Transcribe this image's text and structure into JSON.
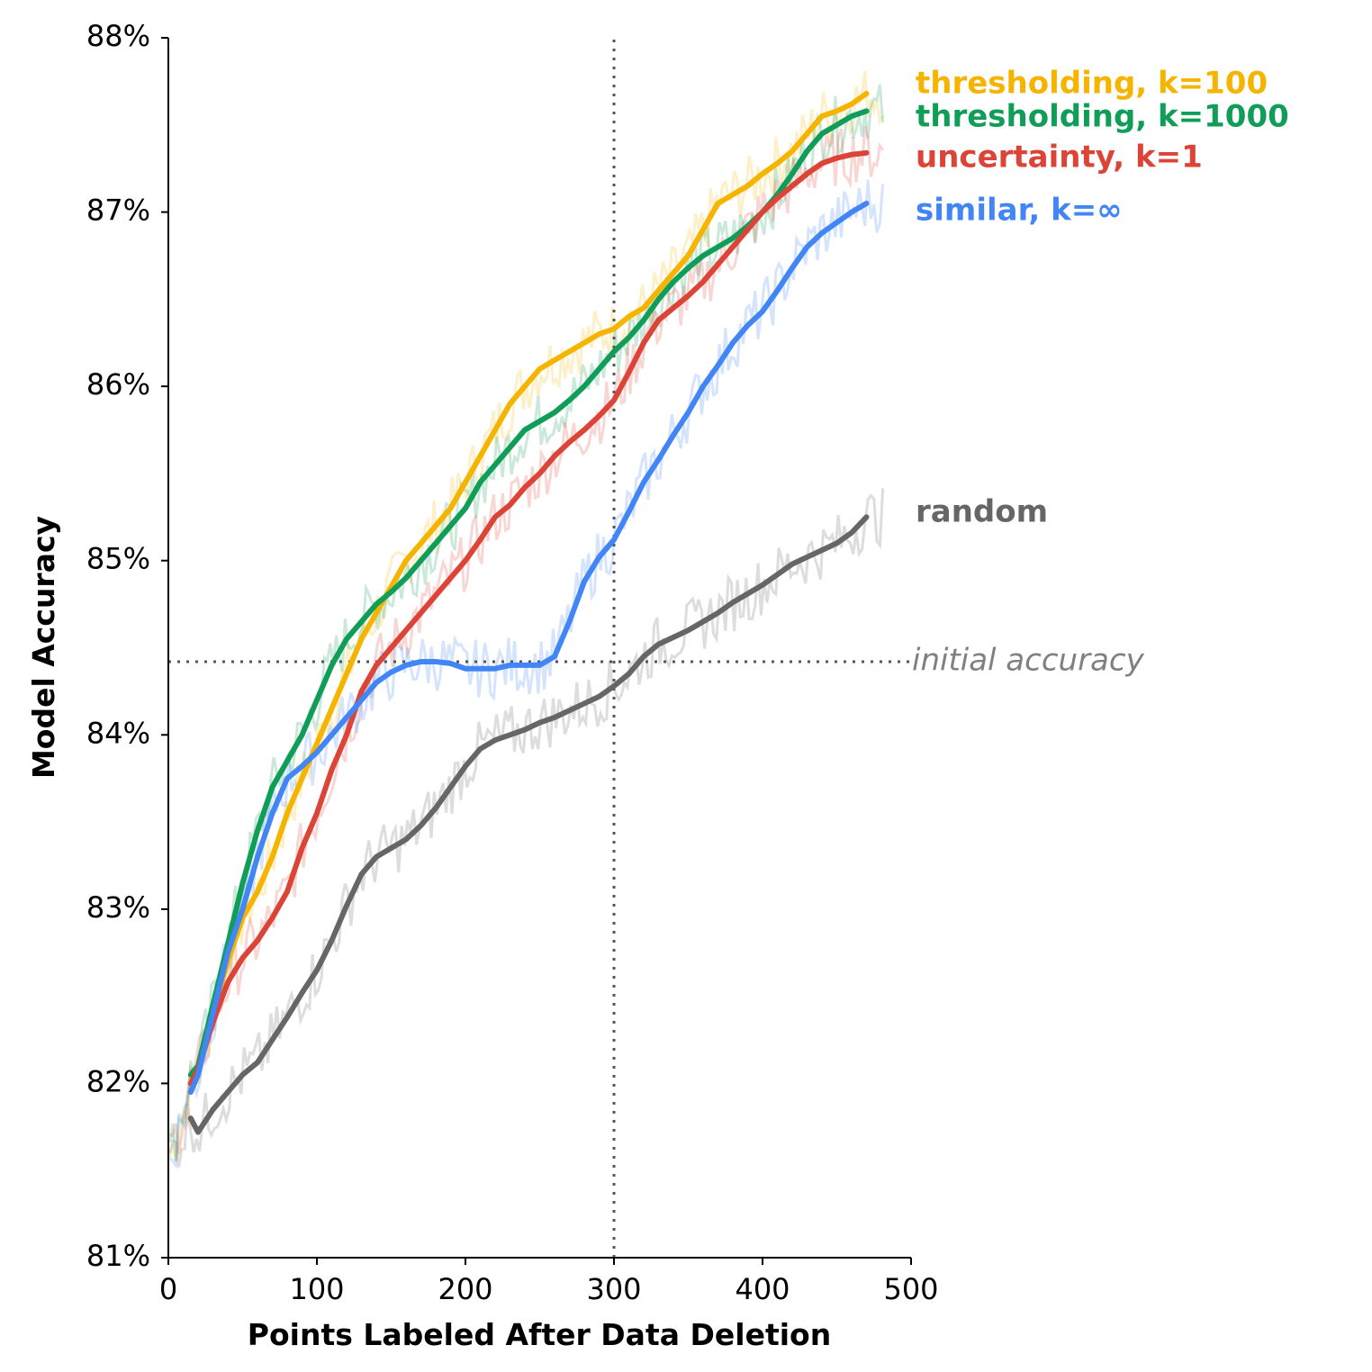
{
  "chart_data": {
    "type": "line",
    "title": "",
    "xlabel": "Points Labeled After Data Deletion",
    "ylabel": "Model Accuracy",
    "xlim": [
      0,
      500
    ],
    "ylim": [
      81,
      88
    ],
    "x_ticks": [
      0,
      100,
      200,
      300,
      400,
      500
    ],
    "y_ticks": [
      81,
      82,
      83,
      84,
      85,
      86,
      87,
      88
    ],
    "x_tick_labels": [
      "0",
      "100",
      "200",
      "300",
      "400",
      "500"
    ],
    "y_tick_labels": [
      "81%",
      "82%",
      "83%",
      "84%",
      "85%",
      "86%",
      "87%",
      "88%"
    ],
    "grid": false,
    "vertical_reference": {
      "x": 300,
      "style": "dotted"
    },
    "horizontal_reference": {
      "y": 84.42,
      "label": "initial accuracy",
      "style": "dotted"
    },
    "series": [
      {
        "name": "thresholding, k=100",
        "color": "#F4B400",
        "x": [
          15,
          20,
          30,
          40,
          50,
          60,
          70,
          80,
          90,
          100,
          110,
          120,
          130,
          140,
          150,
          160,
          170,
          180,
          190,
          200,
          210,
          220,
          230,
          240,
          250,
          260,
          270,
          280,
          290,
          300,
          310,
          320,
          330,
          340,
          350,
          360,
          370,
          380,
          390,
          400,
          410,
          420,
          430,
          440,
          450,
          460,
          470
        ],
        "y": [
          81.95,
          82.05,
          82.4,
          82.7,
          82.95,
          83.1,
          83.3,
          83.55,
          83.75,
          83.95,
          84.15,
          84.35,
          84.55,
          84.7,
          84.85,
          85.0,
          85.1,
          85.2,
          85.3,
          85.45,
          85.6,
          85.75,
          85.9,
          86.0,
          86.1,
          86.15,
          86.2,
          86.25,
          86.3,
          86.33,
          86.4,
          86.45,
          86.55,
          86.65,
          86.75,
          86.9,
          87.05,
          87.1,
          87.15,
          87.22,
          87.28,
          87.35,
          87.45,
          87.55,
          87.58,
          87.62,
          87.68
        ]
      },
      {
        "name": "thresholding, k=1000",
        "color": "#0F9D58",
        "x": [
          15,
          20,
          30,
          40,
          50,
          60,
          70,
          80,
          90,
          100,
          110,
          120,
          130,
          140,
          150,
          160,
          170,
          180,
          190,
          200,
          210,
          220,
          230,
          240,
          250,
          260,
          270,
          280,
          290,
          300,
          310,
          320,
          330,
          340,
          350,
          360,
          370,
          380,
          390,
          400,
          410,
          420,
          430,
          440,
          450,
          460,
          470
        ],
        "y": [
          82.05,
          82.1,
          82.45,
          82.8,
          83.15,
          83.45,
          83.7,
          83.85,
          84.0,
          84.2,
          84.4,
          84.55,
          84.65,
          84.75,
          84.82,
          84.9,
          85.0,
          85.1,
          85.2,
          85.3,
          85.45,
          85.55,
          85.65,
          85.75,
          85.8,
          85.85,
          85.92,
          86.0,
          86.1,
          86.2,
          86.28,
          86.38,
          86.5,
          86.6,
          86.68,
          86.75,
          86.8,
          86.85,
          86.92,
          87.0,
          87.1,
          87.22,
          87.35,
          87.45,
          87.5,
          87.55,
          87.58
        ]
      },
      {
        "name": "uncertainty, k=1",
        "color": "#DB4437",
        "x": [
          15,
          20,
          30,
          40,
          50,
          60,
          70,
          80,
          90,
          100,
          110,
          120,
          130,
          140,
          150,
          160,
          170,
          180,
          190,
          200,
          210,
          220,
          230,
          240,
          250,
          260,
          270,
          280,
          290,
          300,
          310,
          320,
          330,
          340,
          350,
          360,
          370,
          380,
          390,
          400,
          410,
          420,
          430,
          440,
          450,
          460,
          470
        ],
        "y": [
          82.0,
          82.08,
          82.35,
          82.58,
          82.72,
          82.82,
          82.95,
          83.1,
          83.35,
          83.55,
          83.8,
          84.0,
          84.25,
          84.4,
          84.5,
          84.6,
          84.7,
          84.8,
          84.9,
          85.0,
          85.12,
          85.25,
          85.32,
          85.42,
          85.5,
          85.6,
          85.68,
          85.75,
          85.83,
          85.92,
          86.08,
          86.25,
          86.38,
          86.45,
          86.52,
          86.6,
          86.7,
          86.8,
          86.9,
          87.0,
          87.08,
          87.15,
          87.22,
          87.28,
          87.31,
          87.33,
          87.34
        ]
      },
      {
        "name": "similar, k=∞",
        "color": "#4285F4",
        "x": [
          15,
          20,
          30,
          40,
          50,
          60,
          70,
          80,
          90,
          100,
          110,
          120,
          130,
          140,
          150,
          160,
          170,
          180,
          190,
          200,
          210,
          220,
          230,
          240,
          250,
          260,
          270,
          280,
          290,
          300,
          310,
          320,
          330,
          340,
          350,
          360,
          370,
          380,
          390,
          400,
          410,
          420,
          430,
          440,
          450,
          460,
          470
        ],
        "y": [
          81.95,
          82.05,
          82.4,
          82.75,
          83.0,
          83.3,
          83.55,
          83.75,
          83.82,
          83.9,
          84.0,
          84.1,
          84.2,
          84.3,
          84.36,
          84.4,
          84.42,
          84.42,
          84.41,
          84.38,
          84.38,
          84.38,
          84.4,
          84.4,
          84.4,
          84.45,
          84.65,
          84.88,
          85.02,
          85.12,
          85.28,
          85.45,
          85.58,
          85.72,
          85.85,
          86.0,
          86.12,
          86.25,
          86.35,
          86.43,
          86.55,
          86.68,
          86.8,
          86.88,
          86.94,
          87.0,
          87.05
        ]
      },
      {
        "name": "random",
        "color": "#666666",
        "x": [
          15,
          20,
          30,
          40,
          50,
          60,
          70,
          80,
          90,
          100,
          110,
          120,
          130,
          140,
          150,
          160,
          170,
          180,
          190,
          200,
          210,
          220,
          230,
          240,
          250,
          260,
          270,
          280,
          290,
          300,
          310,
          320,
          330,
          340,
          350,
          360,
          370,
          380,
          390,
          400,
          410,
          420,
          430,
          440,
          450,
          460,
          470
        ],
        "y": [
          81.8,
          81.72,
          81.85,
          81.95,
          82.05,
          82.12,
          82.25,
          82.38,
          82.52,
          82.65,
          82.82,
          83.02,
          83.2,
          83.3,
          83.35,
          83.4,
          83.48,
          83.58,
          83.7,
          83.82,
          83.92,
          83.97,
          84.0,
          84.03,
          84.07,
          84.1,
          84.14,
          84.18,
          84.22,
          84.28,
          84.35,
          84.45,
          84.52,
          84.56,
          84.6,
          84.65,
          84.7,
          84.76,
          84.81,
          84.86,
          84.92,
          84.98,
          85.02,
          85.06,
          85.1,
          85.16,
          85.25
        ]
      }
    ]
  }
}
